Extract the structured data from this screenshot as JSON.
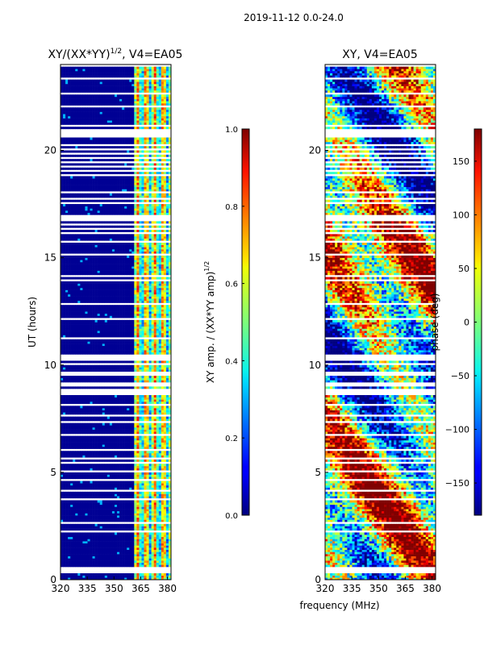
{
  "suptitle": "2019-11-12 0.0-24.0",
  "xlabel": "frequency (MHz)",
  "chart_data": [
    {
      "type": "heatmap",
      "title": "XY/(XX*YY)",
      "title_superscript": "1/2",
      "title_suffix": ", V4=EA05",
      "xlabel": "",
      "ylabel": "UT (hours)",
      "xlim": [
        320,
        382
      ],
      "ylim": [
        0,
        24
      ],
      "xticks": [
        320,
        335,
        350,
        365,
        380
      ],
      "yticks": [
        0,
        5,
        10,
        15,
        20
      ],
      "colormap": "jet",
      "colorbar": {
        "label": "XY amp. / (XX*YY amp)",
        "label_superscript": "1/2",
        "range": [
          0.0,
          1.0
        ],
        "ticks": [
          "0.0",
          "0.2",
          "0.4",
          "0.6",
          "0.8",
          "1.0"
        ]
      }
    },
    {
      "type": "heatmap",
      "title": "XY, V4=EA05",
      "xlabel": "frequency (MHz)",
      "ylabel": "",
      "xlim": [
        320,
        382
      ],
      "ylim": [
        0,
        24
      ],
      "xticks": [
        320,
        335,
        350,
        365,
        380
      ],
      "yticks": [
        0,
        5,
        10,
        15,
        20
      ],
      "colormap": "jet",
      "colorbar": {
        "label": "phase (deg)",
        "range": [
          -180,
          180
        ],
        "ticks": [
          "−150",
          "−100",
          "−50",
          "0",
          "50",
          "100",
          "150"
        ]
      }
    }
  ]
}
